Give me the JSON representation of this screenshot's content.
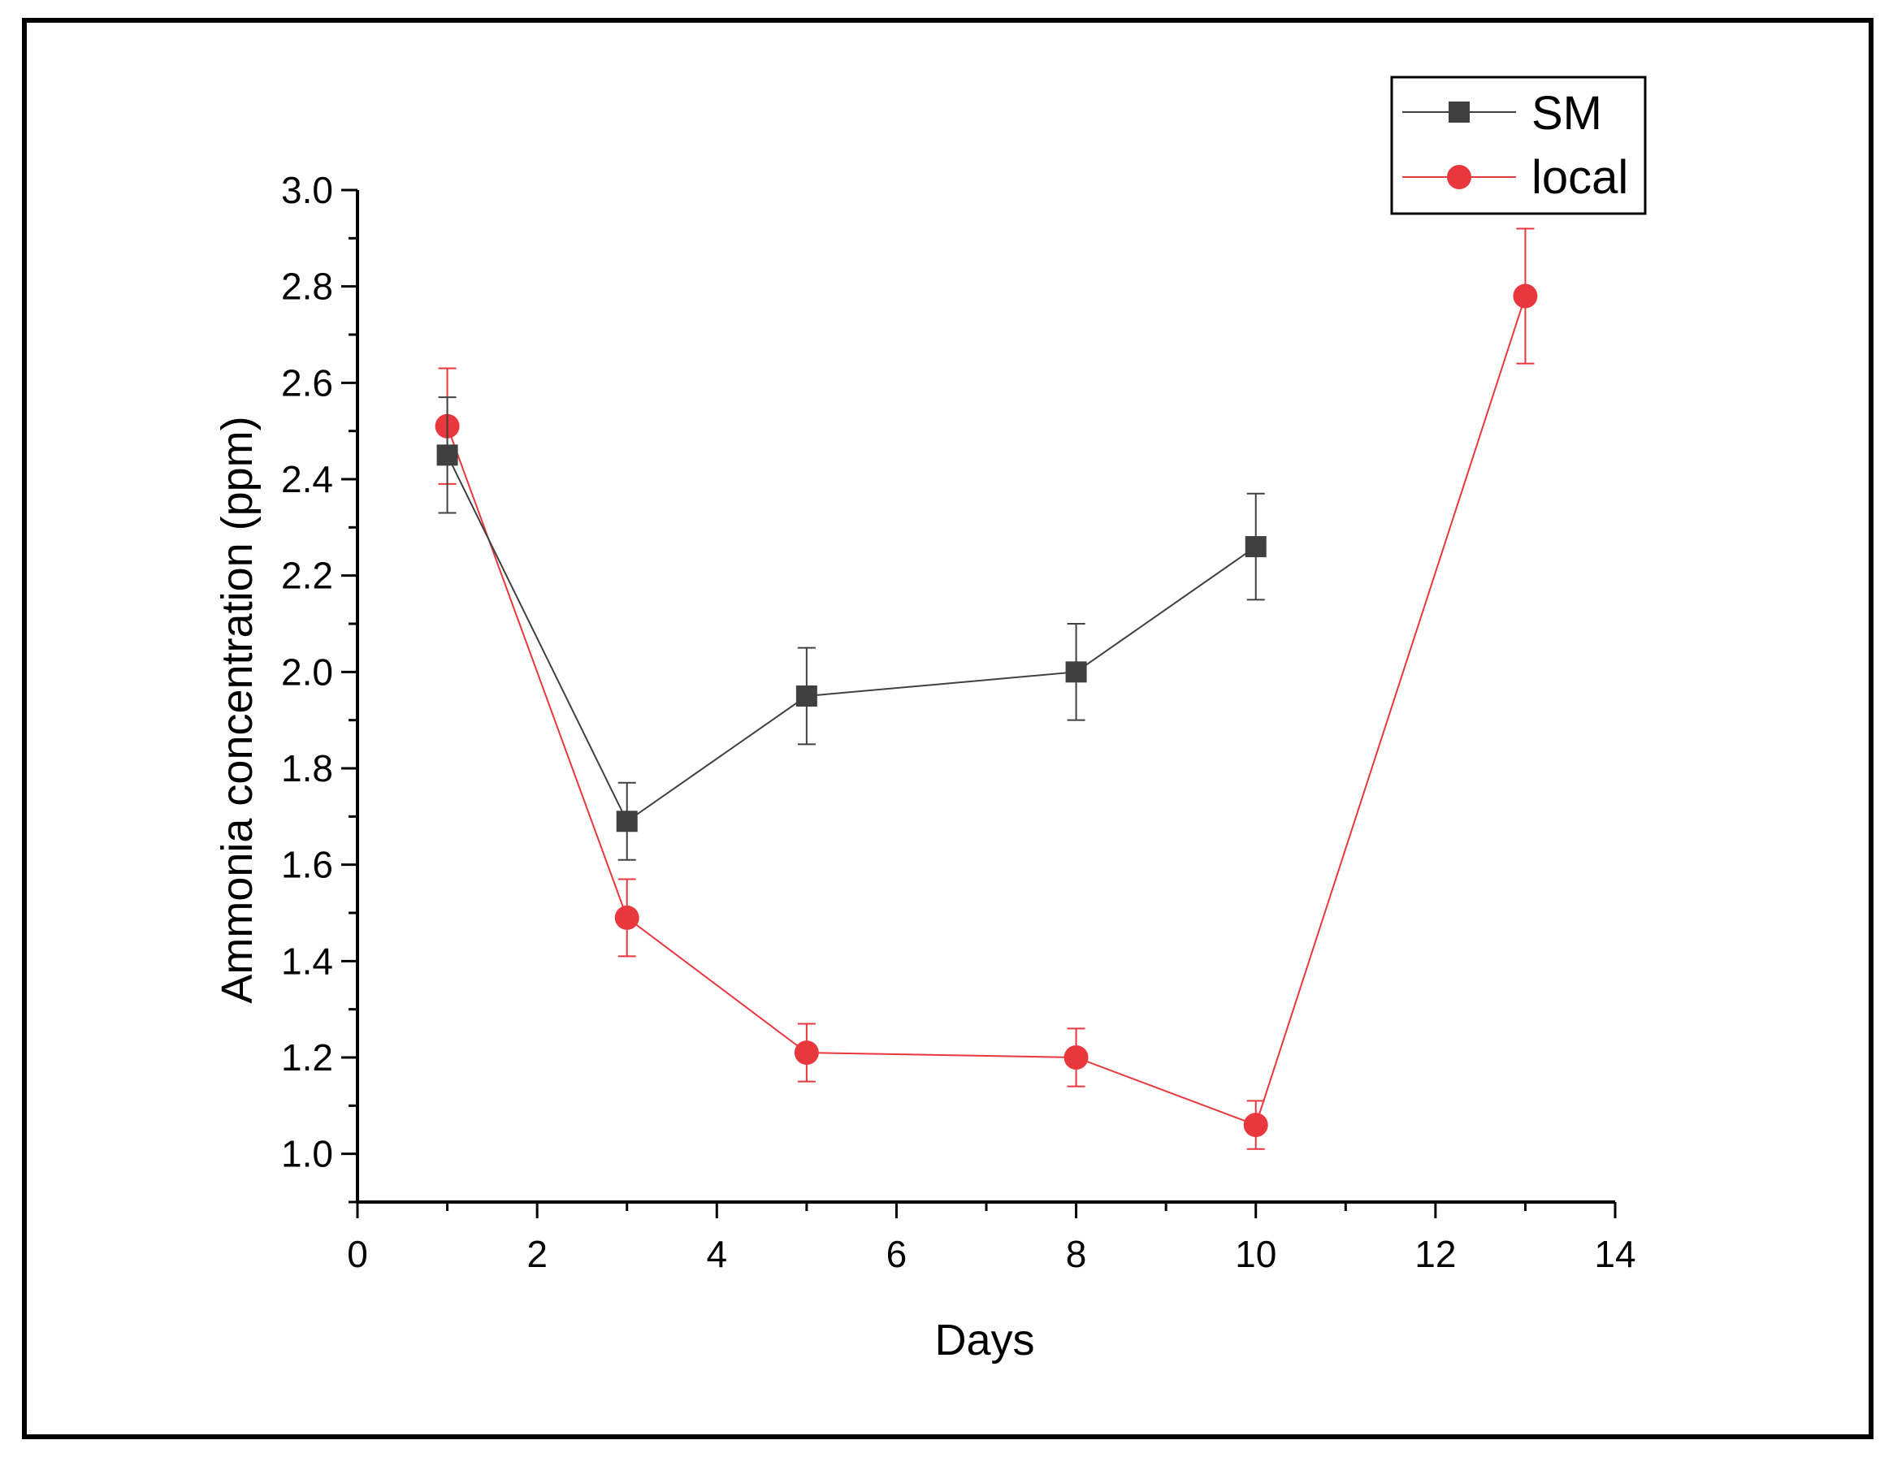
{
  "chart_data": {
    "type": "line",
    "title": "",
    "xlabel": "Days",
    "ylabel": "Ammonia concentration (ppm)",
    "xlim": [
      0,
      14
    ],
    "ylim": [
      0.9,
      3.0
    ],
    "x_ticks": [
      "0",
      "2",
      "4",
      "6",
      "8",
      "10",
      "12",
      "14"
    ],
    "y_ticks": [
      "1.0",
      "1.2",
      "1.4",
      "1.6",
      "1.8",
      "2.0",
      "2.2",
      "2.4",
      "2.6",
      "2.8",
      "3.0"
    ],
    "grid": false,
    "legend_position": "top-right",
    "series": [
      {
        "name": "SM",
        "color": "#404040",
        "marker": "square",
        "x": [
          1,
          3,
          5,
          8,
          10
        ],
        "y": [
          2.45,
          1.69,
          1.95,
          2.0,
          2.26
        ],
        "err": [
          0.12,
          0.08,
          0.1,
          0.1,
          0.11
        ]
      },
      {
        "name": "local",
        "color": "#e8383d",
        "marker": "circle",
        "x": [
          1,
          3,
          5,
          8,
          10,
          13
        ],
        "y": [
          2.51,
          1.49,
          1.21,
          1.2,
          1.06,
          2.78
        ],
        "err": [
          0.12,
          0.08,
          0.06,
          0.06,
          0.05,
          0.14
        ]
      }
    ]
  }
}
